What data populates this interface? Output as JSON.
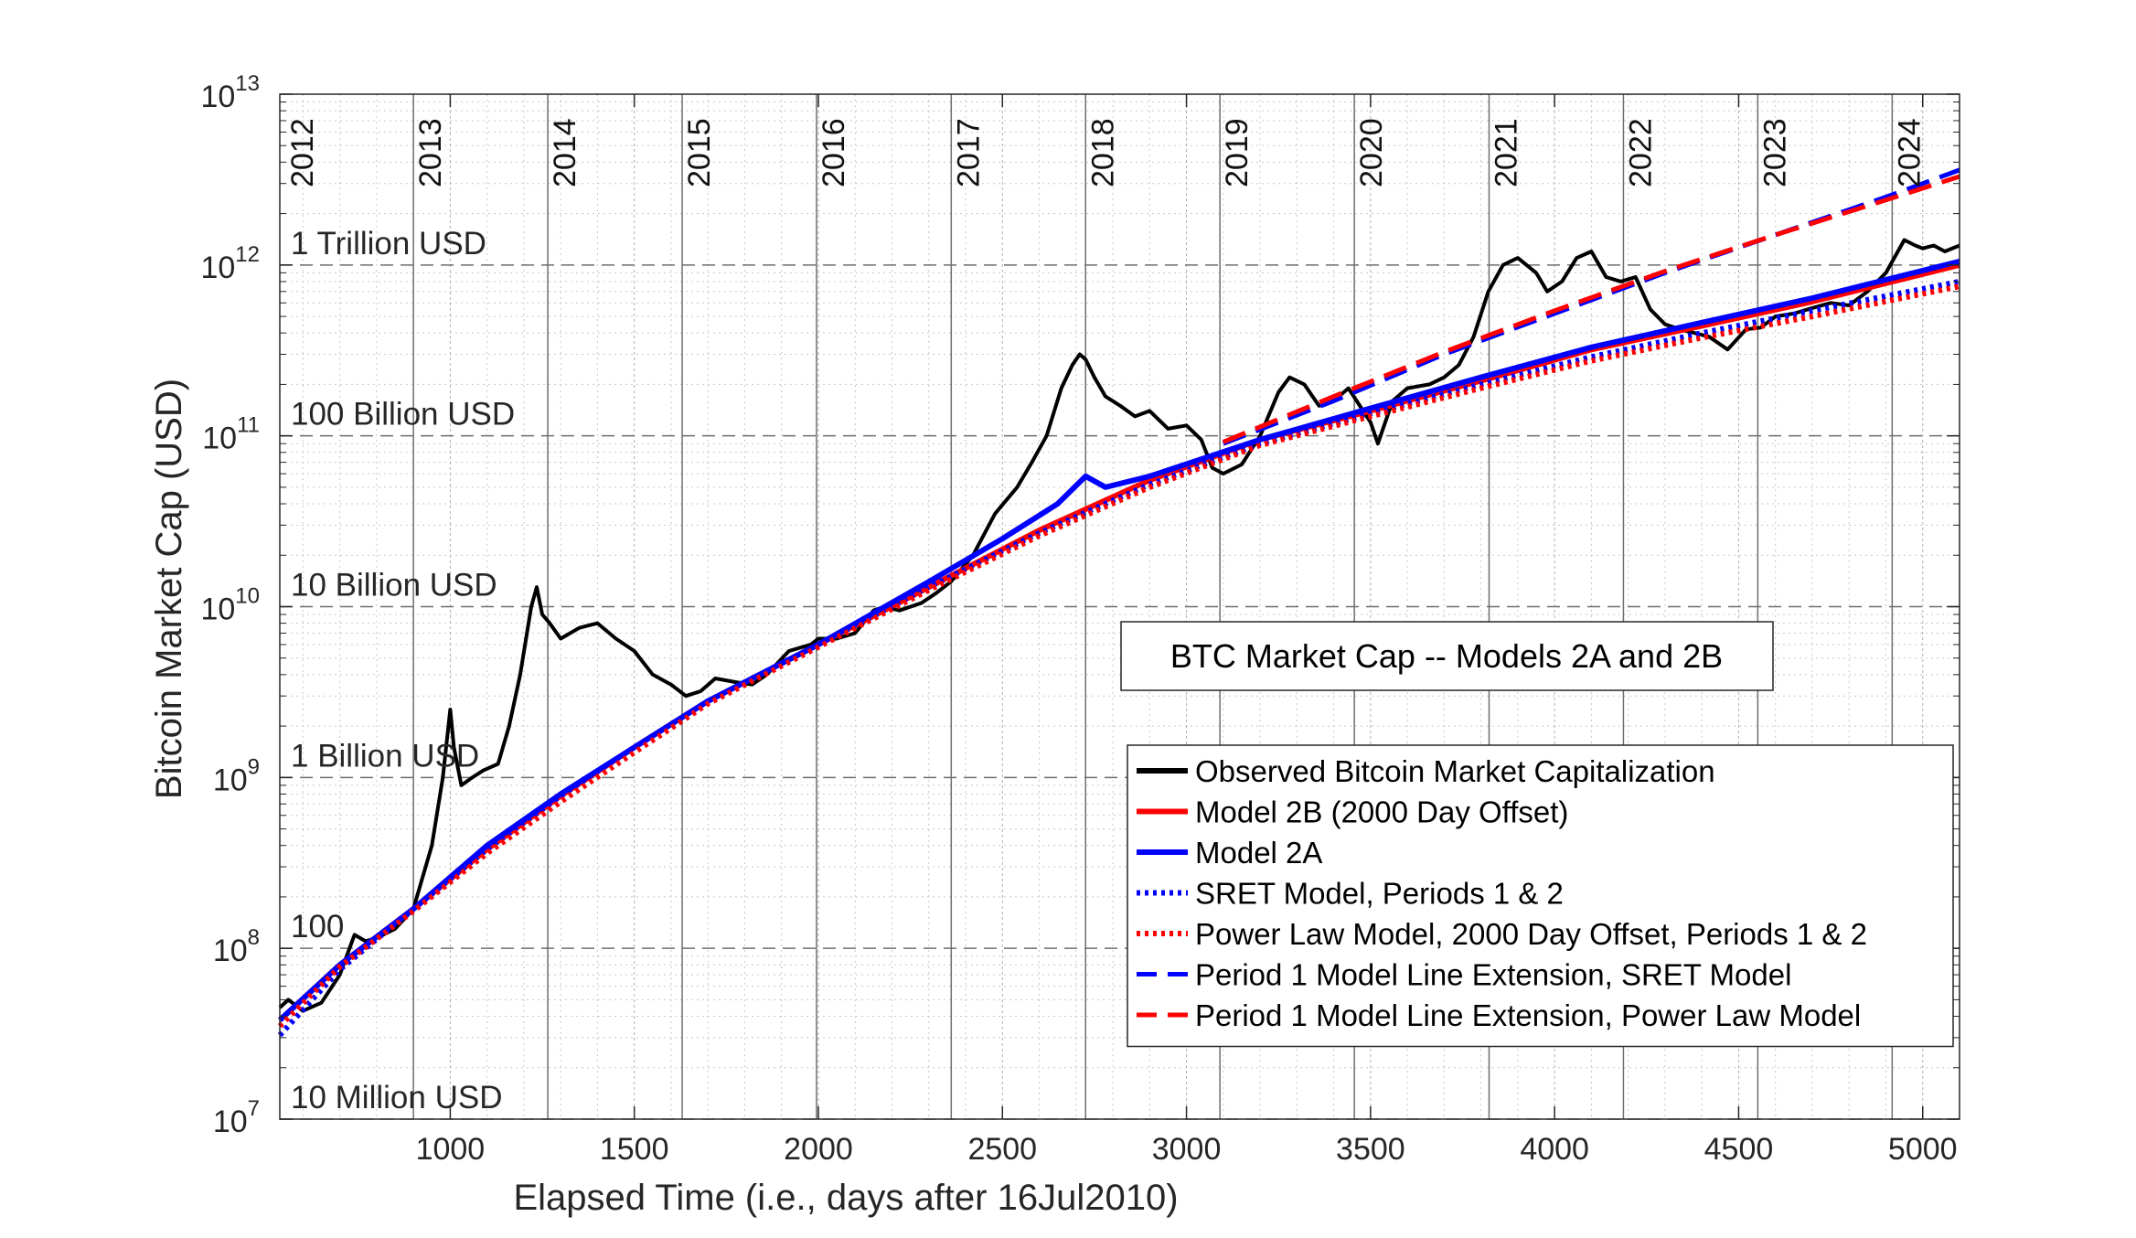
{
  "chart_data": {
    "type": "line",
    "title": "BTC Market Cap -- Models 2A and 2B",
    "xlabel": "Elapsed Time (i.e., days after 16Jul2010)",
    "ylabel": "Bitcoin Market Cap (USD)",
    "xlim": [
      537,
      5100
    ],
    "ylim": [
      10000000,
      10000000000000
    ],
    "yscale": "log",
    "grid": true,
    "x_ticks": [
      1000,
      1500,
      2000,
      2500,
      3000,
      3500,
      4000,
      4500,
      5000
    ],
    "x_tick_labels": [
      "1000",
      "1500",
      "2000",
      "2500",
      "3000",
      "3500",
      "4000",
      "4500",
      "5000"
    ],
    "y_ticks": [
      {
        "value": 10000000,
        "base": "10",
        "exp": "7"
      },
      {
        "value": 100000000,
        "base": "10",
        "exp": "8"
      },
      {
        "value": 1000000000,
        "base": "10",
        "exp": "9"
      },
      {
        "value": 10000000000,
        "base": "10",
        "exp": "10"
      },
      {
        "value": 100000000000,
        "base": "10",
        "exp": "11"
      },
      {
        "value": 1000000000000,
        "base": "10",
        "exp": "12"
      },
      {
        "value": 10000000000000,
        "base": "10",
        "exp": "13"
      }
    ],
    "year_markers": [
      {
        "label": "2012",
        "day": 534
      },
      {
        "label": "2013",
        "day": 900
      },
      {
        "label": "2014",
        "day": 1265
      },
      {
        "label": "2015",
        "day": 1630
      },
      {
        "label": "2016",
        "day": 1995
      },
      {
        "label": "2017",
        "day": 2361
      },
      {
        "label": "2018",
        "day": 2726
      },
      {
        "label": "2019",
        "day": 3091
      },
      {
        "label": "2020",
        "day": 3456
      },
      {
        "label": "2021",
        "day": 3822
      },
      {
        "label": "2022",
        "day": 4187
      },
      {
        "label": "2023",
        "day": 4552
      },
      {
        "label": "2024",
        "day": 4917
      }
    ],
    "reference_levels": [
      {
        "label": "10 Million USD",
        "value": 10000000
      },
      {
        "label": "100",
        "value": 100000000
      },
      {
        "label": "1 Billion USD",
        "value": 1000000000
      },
      {
        "label": "10 Billion USD",
        "value": 10000000000
      },
      {
        "label": "100 Billion USD",
        "value": 100000000000
      },
      {
        "label": "1 Trillion USD",
        "value": 1000000000000
      }
    ],
    "legend_position": "bottom-right",
    "series": [
      {
        "name": "Observed Bitcoin Market Capitalization",
        "color": "#000000",
        "style": "solid",
        "x": [
          537,
          560,
          600,
          650,
          700,
          740,
          770,
          800,
          850,
          900,
          950,
          980,
          1000,
          1010,
          1030,
          1060,
          1090,
          1130,
          1160,
          1190,
          1220,
          1235,
          1250,
          1270,
          1300,
          1350,
          1400,
          1450,
          1500,
          1550,
          1600,
          1640,
          1680,
          1720,
          1780,
          1820,
          1860,
          1920,
          1980,
          2000,
          2050,
          2100,
          2150,
          2180,
          2220,
          2280,
          2320,
          2360,
          2420,
          2480,
          2540,
          2580,
          2620,
          2660,
          2690,
          2710,
          2726,
          2750,
          2780,
          2820,
          2860,
          2900,
          2950,
          3000,
          3040,
          3070,
          3100,
          3150,
          3200,
          3250,
          3280,
          3320,
          3360,
          3400,
          3440,
          3480,
          3500,
          3520,
          3560,
          3600,
          3660,
          3700,
          3740,
          3780,
          3820,
          3860,
          3900,
          3950,
          3980,
          4020,
          4060,
          4100,
          4140,
          4180,
          4220,
          4260,
          4300,
          4340,
          4380,
          4420,
          4470,
          4520,
          4560,
          4600,
          4650,
          4700,
          4750,
          4800,
          4850,
          4900,
          4950,
          4980,
          5000,
          5030,
          5060,
          5100
        ],
        "values": [
          45000000,
          50000000,
          43000000,
          48000000,
          70000000,
          120000000,
          110000000,
          115000000,
          130000000,
          170000000,
          400000000,
          1000000000,
          2500000000,
          1500000000,
          900000000,
          1000000000,
          1100000000,
          1200000000,
          2000000000,
          4000000000,
          10000000000,
          13000000000,
          9000000000,
          8000000000,
          6500000000,
          7500000000,
          8000000000,
          6500000000,
          5500000000,
          4000000000,
          3500000000,
          3000000000,
          3200000000,
          3800000000,
          3600000000,
          3500000000,
          4000000000,
          5500000000,
          6000000000,
          6500000000,
          6500000000,
          7000000000,
          9500000000,
          10000000000,
          9500000000,
          10500000000,
          12000000000,
          14000000000,
          20000000000,
          35000000000,
          50000000000,
          70000000000,
          100000000000,
          190000000000,
          260000000000,
          300000000000,
          280000000000,
          220000000000,
          170000000000,
          150000000000,
          130000000000,
          140000000000,
          110000000000,
          115000000000,
          95000000000,
          65000000000,
          60000000000,
          68000000000,
          100000000000,
          180000000000,
          220000000000,
          200000000000,
          150000000000,
          160000000000,
          190000000000,
          140000000000,
          120000000000,
          90000000000,
          160000000000,
          190000000000,
          200000000000,
          220000000000,
          260000000000,
          380000000000,
          700000000000,
          1000000000000,
          1100000000000,
          900000000000,
          700000000000,
          800000000000,
          1100000000000,
          1200000000000,
          850000000000,
          800000000000,
          850000000000,
          550000000000,
          450000000000,
          420000000000,
          400000000000,
          380000000000,
          320000000000,
          420000000000,
          430000000000,
          500000000000,
          520000000000,
          560000000000,
          600000000000,
          580000000000,
          700000000000,
          900000000000,
          1400000000000,
          1300000000000,
          1250000000000,
          1300000000000,
          1200000000000,
          1300000000000
        ]
      },
      {
        "name": "Model 2B (2000 Day Offset)",
        "color": "#ff0000",
        "style": "solid",
        "x": [
          537,
          700,
          900,
          1100,
          1300,
          1500,
          1700,
          2000,
          2300,
          2600,
          2900,
          3200,
          3500,
          3800,
          4100,
          4400,
          4700,
          5100
        ],
        "values": [
          38000000,
          80000000,
          170000000,
          380000000,
          780000000,
          1500000000,
          2800000000,
          6000000000,
          13000000000,
          28000000000,
          55000000000,
          95000000000,
          140000000000,
          210000000000,
          320000000000,
          440000000000,
          610000000000,
          1000000000000
        ]
      },
      {
        "name": "Model 2A",
        "color": "#0000ff",
        "style": "solid",
        "x": [
          537,
          700,
          900,
          1100,
          1300,
          1500,
          1700,
          2000,
          2300,
          2500,
          2650,
          2726,
          2780,
          2900,
          3200,
          3500,
          3800,
          4100,
          4400,
          4700,
          5100
        ],
        "values": [
          38000000,
          80000000,
          170000000,
          400000000,
          800000000,
          1500000000,
          2800000000,
          6000000000,
          14000000000,
          25000000000,
          40000000000,
          58000000000,
          50000000000,
          58000000000,
          95000000000,
          145000000000,
          220000000000,
          330000000000,
          460000000000,
          640000000000,
          1050000000000
        ]
      },
      {
        "name": "SRET Model, Periods 1 & 2",
        "color": "#0000ff",
        "style": "dotted",
        "x": [
          537,
          700,
          900,
          1100,
          1300,
          1500,
          1700,
          2000,
          2300,
          2600,
          2900,
          3200,
          3500,
          3800,
          4100,
          4400,
          4700,
          5100
        ],
        "values": [
          31000000,
          75000000,
          170000000,
          380000000,
          780000000,
          1500000000,
          2800000000,
          6000000000,
          13000000000,
          27000000000,
          52000000000,
          90000000000,
          135000000000,
          200000000000,
          290000000000,
          400000000000,
          540000000000,
          800000000000
        ]
      },
      {
        "name": "Power Law Model, 2000 Day Offset, Periods 1 & 2",
        "color": "#ff0000",
        "style": "dotted",
        "x": [
          537,
          700,
          900,
          1100,
          1300,
          1500,
          1700,
          2000,
          2300,
          2600,
          2900,
          3200,
          3500,
          3800,
          4100,
          4400,
          4700,
          5100
        ],
        "values": [
          35000000,
          78000000,
          165000000,
          360000000,
          720000000,
          1400000000,
          2700000000,
          5800000000,
          12500000000,
          26000000000,
          50000000000,
          88000000000,
          130000000000,
          190000000000,
          275000000000,
          375000000000,
          500000000000,
          750000000000
        ]
      },
      {
        "name": "Period 1 Model Line Extension, SRET Model",
        "color": "#0000ff",
        "style": "dashed",
        "x": [
          3100,
          3400,
          3700,
          4000,
          4300,
          4600,
          4900,
          5100
        ],
        "values": [
          90000000000,
          160000000000,
          300000000000,
          520000000000,
          900000000000,
          1500000000000,
          2500000000000,
          3600000000000
        ]
      },
      {
        "name": "Period 1 Model Line Extension, Power Law Model",
        "color": "#ff0000",
        "style": "dashed",
        "x": [
          3100,
          3400,
          3700,
          4000,
          4300,
          4600,
          4900,
          5100
        ],
        "values": [
          92000000000,
          170000000000,
          310000000000,
          540000000000,
          920000000000,
          1500000000000,
          2400000000000,
          3300000000000
        ]
      }
    ]
  }
}
